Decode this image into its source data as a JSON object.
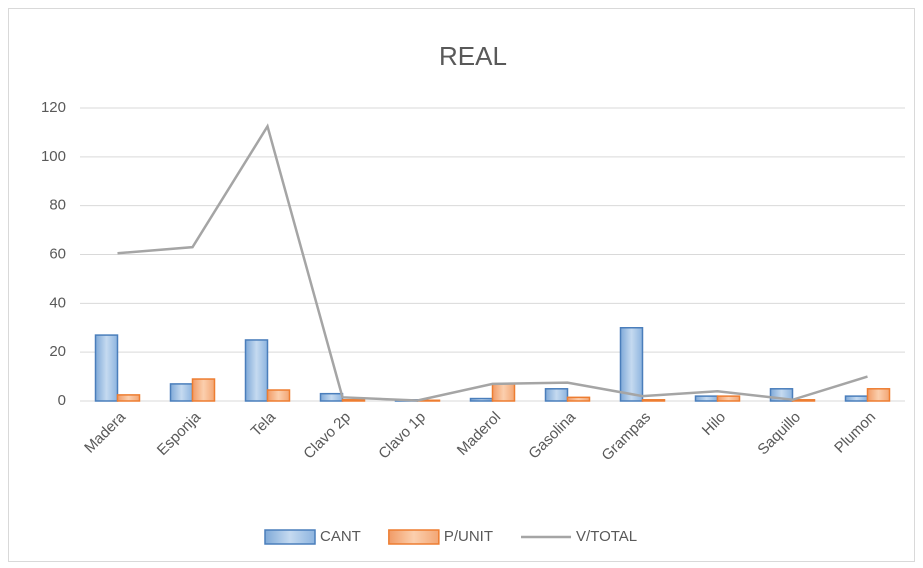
{
  "chart_data": {
    "type": "bar",
    "title": "REAL",
    "categories": [
      "Madera",
      "Esponja",
      "Tela",
      "Clavo 2p",
      "Clavo 1p",
      "Maderol",
      "Gasolina",
      "Grampas",
      "Hilo",
      "Saquillo",
      "Plumon"
    ],
    "series": [
      {
        "name": "CANT",
        "type": "bar",
        "color": "#9dc3e6",
        "values": [
          27,
          7,
          25,
          3,
          0.5,
          1,
          5,
          30,
          2,
          5,
          2
        ]
      },
      {
        "name": "P/UNIT",
        "type": "bar",
        "color": "#f4b183",
        "values": [
          2.5,
          9,
          4.5,
          0.5,
          0.3,
          7,
          1.5,
          0.5,
          2,
          0.5,
          5
        ]
      },
      {
        "name": "V/TOTAL",
        "type": "line",
        "color": "#a5a5a5",
        "values": [
          60.5,
          63,
          112.5,
          1.5,
          0.2,
          7,
          7.5,
          2,
          4,
          0.5,
          10
        ]
      }
    ],
    "ylim": [
      0,
      120
    ],
    "yticks": [
      0,
      20,
      40,
      60,
      80,
      100,
      120
    ],
    "grid": true,
    "legend": "bottom"
  }
}
